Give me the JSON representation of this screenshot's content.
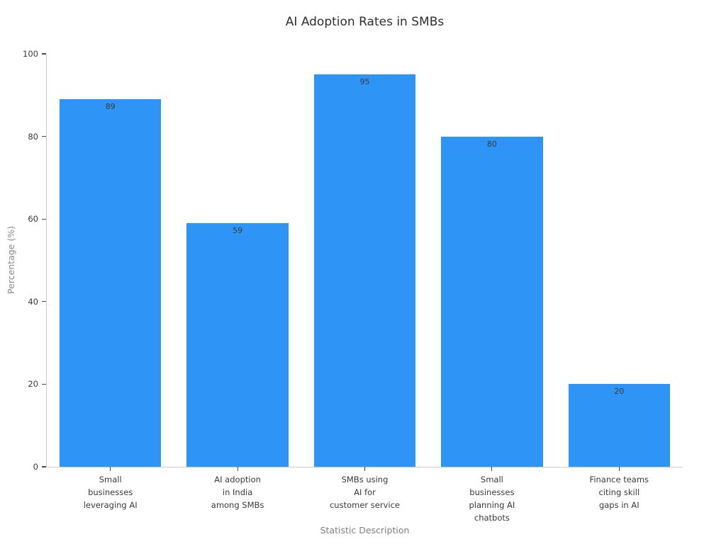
{
  "chart_data": {
    "type": "bar",
    "title": "AI Adoption Rates in SMBs",
    "xlabel": "Statistic Description",
    "ylabel": "Percentage (%)",
    "categories": [
      "Small\nbusinesses\nleveraging AI",
      "AI adoption\nin India\namong SMBs",
      "SMBs using\nAI for\ncustomer service",
      "Small\nbusinesses\nplanning AI\nchatbots",
      "Finance teams\nciting skill\ngaps in AI"
    ],
    "values": [
      89,
      59,
      95,
      80,
      20
    ],
    "yticks": [
      0,
      20,
      40,
      60,
      80,
      100
    ],
    "ylim": [
      0,
      100
    ],
    "grid": false,
    "legend_position": "none",
    "value_labels_position": "inside-top"
  },
  "colors": {
    "bar": "#2e94f5",
    "title_text": "#2f2f2f",
    "tick_text": "#3a3a3a",
    "axis_label_text": "#828282",
    "spine": "#cccccc",
    "tick_mark": "#4d4d4d",
    "background": "#ffffff"
  }
}
